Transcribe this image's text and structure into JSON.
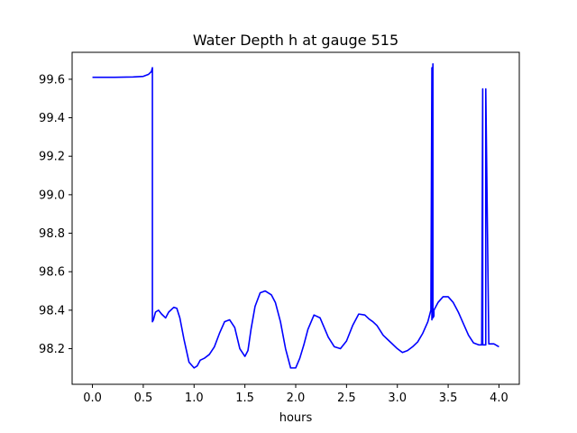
{
  "chart_data": {
    "type": "line",
    "title": "Water Depth h at gauge 515",
    "xlabel": "hours",
    "ylabel": "",
    "xlim": [
      -0.2,
      4.2
    ],
    "ylim": [
      98.015,
      99.74
    ],
    "xticks": [
      0.0,
      0.5,
      1.0,
      1.5,
      2.0,
      2.5,
      3.0,
      3.5,
      4.0
    ],
    "xtick_labels": [
      "0.0",
      "0.5",
      "1.0",
      "1.5",
      "2.0",
      "2.5",
      "3.0",
      "3.5",
      "4.0"
    ],
    "yticks": [
      98.2,
      98.4,
      98.6,
      98.8,
      99.0,
      99.2,
      99.4,
      99.6
    ],
    "ytick_labels": [
      "98.2",
      "98.4",
      "98.6",
      "98.8",
      "99.0",
      "99.2",
      "99.4",
      "99.6"
    ],
    "grid": false,
    "legend": "none",
    "series": [
      {
        "color": "#0000ff",
        "x": [
          0.0,
          0.2,
          0.4,
          0.5,
          0.55,
          0.58,
          0.59,
          0.59,
          0.6,
          0.62,
          0.65,
          0.68,
          0.72,
          0.75,
          0.8,
          0.83,
          0.86,
          0.9,
          0.95,
          1.0,
          1.03,
          1.06,
          1.1,
          1.15,
          1.2,
          1.25,
          1.3,
          1.35,
          1.4,
          1.45,
          1.5,
          1.53,
          1.56,
          1.6,
          1.65,
          1.7,
          1.73,
          1.76,
          1.8,
          1.85,
          1.9,
          1.95,
          2.0,
          2.04,
          2.08,
          2.12,
          2.18,
          2.24,
          2.28,
          2.32,
          2.38,
          2.44,
          2.5,
          2.56,
          2.62,
          2.68,
          2.72,
          2.76,
          2.8,
          2.86,
          2.92,
          3.0,
          3.05,
          3.1,
          3.15,
          3.2,
          3.25,
          3.3,
          3.33,
          3.34,
          3.34,
          3.35,
          3.35,
          3.36,
          3.36,
          3.4,
          3.45,
          3.5,
          3.55,
          3.6,
          3.65,
          3.7,
          3.75,
          3.8,
          3.83,
          3.84,
          3.84,
          3.87,
          3.87,
          3.9,
          3.95,
          4.0
        ],
        "y": [
          99.61,
          99.61,
          99.612,
          99.615,
          99.625,
          99.64,
          99.66,
          98.34,
          98.35,
          98.39,
          98.4,
          98.38,
          98.36,
          98.39,
          98.415,
          98.41,
          98.36,
          98.25,
          98.13,
          98.1,
          98.11,
          98.14,
          98.15,
          98.17,
          98.21,
          98.28,
          98.34,
          98.35,
          98.31,
          98.2,
          98.16,
          98.19,
          98.3,
          98.42,
          98.49,
          98.5,
          98.49,
          98.48,
          98.44,
          98.34,
          98.2,
          98.1,
          98.1,
          98.15,
          98.22,
          98.3,
          98.375,
          98.36,
          98.31,
          98.26,
          98.21,
          98.2,
          98.24,
          98.32,
          98.38,
          98.375,
          98.355,
          98.34,
          98.32,
          98.27,
          98.24,
          98.2,
          98.18,
          98.19,
          98.21,
          98.235,
          98.28,
          98.34,
          98.4,
          99.66,
          98.35,
          99.68,
          98.36,
          98.37,
          98.4,
          98.44,
          98.47,
          98.47,
          98.44,
          98.39,
          98.33,
          98.27,
          98.23,
          98.22,
          98.22,
          99.55,
          98.22,
          98.22,
          99.55,
          98.225,
          98.225,
          98.21
        ]
      }
    ]
  }
}
